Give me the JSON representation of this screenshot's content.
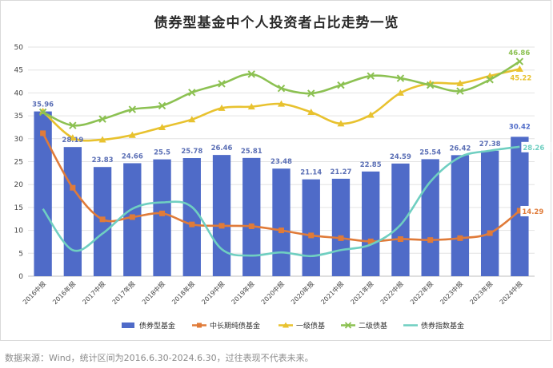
{
  "title": "债券型基金中个人投资者占比走势一览",
  "source_note": "数据来源：Wind，统计区间为2016.6.30-2024.6.30，过往表现不代表未来。",
  "chart_data": {
    "type": "bar",
    "categories": [
      "2016中报",
      "2016年报",
      "2017中报",
      "2017年报",
      "2018中报",
      "2018年报",
      "2019中报",
      "2019年报",
      "2020中报",
      "2020年报",
      "2021中报",
      "2021年报",
      "2022中报",
      "2022年报",
      "2023中报",
      "2023年报",
      "2024中报"
    ],
    "ylim": [
      0,
      50
    ],
    "yticks": [
      0,
      5,
      10,
      15,
      20,
      25,
      30,
      35,
      40,
      45,
      50
    ],
    "grid": true,
    "legend_position": "bottom",
    "series": [
      {
        "name": "债券型基金",
        "kind": "bar",
        "color": "#4f6bc8",
        "values": [
          35.96,
          28.19,
          23.83,
          24.66,
          25.5,
          25.78,
          26.46,
          25.81,
          23.48,
          21.14,
          21.27,
          22.85,
          24.59,
          25.54,
          26.42,
          27.38,
          30.42
        ],
        "labels": [
          "35.96",
          "28.19",
          "23.83",
          "24.66",
          "25.5",
          "25.78",
          "26.46",
          "25.81",
          "23.48",
          "21.14",
          "21.27",
          "22.85",
          "24.59",
          "25.54",
          "26.42",
          "27.38",
          "30.42"
        ]
      },
      {
        "name": "中长期纯债基金",
        "kind": "line",
        "marker": "square",
        "color": "#e07b39",
        "values": [
          31.2,
          19.3,
          12.4,
          12.9,
          13.7,
          11.3,
          11.0,
          10.9,
          10.0,
          8.9,
          8.3,
          7.6,
          8.1,
          7.9,
          8.3,
          9.4,
          14.29
        ],
        "end_label": "14.29"
      },
      {
        "name": "一级债基",
        "kind": "line",
        "marker": "triangle",
        "color": "#e8c22f",
        "values": [
          36.0,
          30.2,
          29.8,
          30.8,
          32.5,
          34.2,
          36.7,
          37.0,
          37.6,
          35.8,
          33.3,
          35.2,
          40.0,
          42.1,
          42.1,
          43.7,
          45.22
        ],
        "end_label": "45.22"
      },
      {
        "name": "二级债基",
        "kind": "line",
        "marker": "x",
        "color": "#8cc152",
        "values": [
          35.8,
          32.9,
          34.3,
          36.4,
          37.2,
          40.1,
          42.0,
          44.1,
          41.0,
          39.9,
          41.7,
          43.7,
          43.2,
          41.7,
          40.4,
          42.9,
          46.86
        ],
        "end_label": "46.86"
      },
      {
        "name": "债券指数基金",
        "kind": "line",
        "marker": "none",
        "color": "#6fcfc1",
        "values": [
          14.7,
          5.7,
          9.3,
          14.7,
          16.1,
          15.1,
          5.9,
          4.5,
          5.2,
          4.4,
          5.7,
          6.9,
          11.2,
          20.6,
          26.0,
          27.4,
          28.26
        ],
        "end_label": "28.26"
      }
    ]
  }
}
